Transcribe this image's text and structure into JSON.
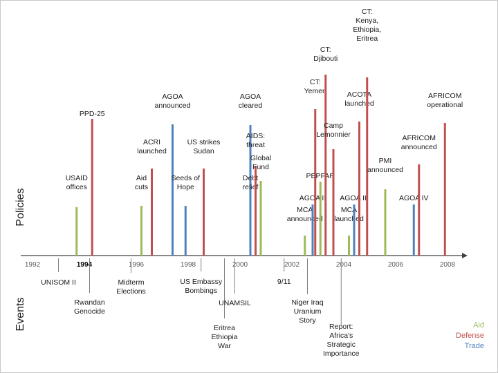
{
  "colors": {
    "aid": "#9bbb59",
    "defense": "#c0504d",
    "trade": "#4f81bd",
    "axis": "#404040",
    "text": "#1a1a1a"
  },
  "axis_labels": {
    "top": "Policies",
    "bottom": "Events"
  },
  "years": [
    "1992",
    "1994",
    "1996",
    "1998",
    "2000",
    "2002",
    "2004",
    "2006",
    "2008"
  ],
  "legend": [
    {
      "label": "Aid",
      "category": "aid"
    },
    {
      "label": "Defense",
      "category": "defense"
    },
    {
      "label": "Trade",
      "category": "trade"
    }
  ],
  "policies": [
    {
      "label": [
        "USAID",
        "offices"
      ],
      "year": 1993.7,
      "category": "aid"
    },
    {
      "label": [
        "PPD-25"
      ],
      "year": 1994.3,
      "category": "defense"
    },
    {
      "label": [
        "Aid",
        "cuts"
      ],
      "year": 1996.2,
      "category": "aid"
    },
    {
      "label": [
        "ACRI",
        "launched"
      ],
      "year": 1996.6,
      "category": "defense"
    },
    {
      "label": [
        "AGOA",
        "announced"
      ],
      "year": 1997.4,
      "category": "trade"
    },
    {
      "label": [
        "Seeds of",
        "Hope"
      ],
      "year": 1997.9,
      "category": "trade"
    },
    {
      "label": [
        "US strikes",
        "Sudan"
      ],
      "year": 1998.6,
      "category": "defense"
    },
    {
      "label": [
        "AGOA",
        "cleared"
      ],
      "year": 2000.4,
      "category": "trade"
    },
    {
      "label": [
        "Debt",
        "relief"
      ],
      "year": 2000.4,
      "category": "trade"
    },
    {
      "label": [
        "AIDS:",
        "threat"
      ],
      "year": 2000.6,
      "category": "defense"
    },
    {
      "label": [
        "Global",
        "Fund"
      ],
      "year": 2000.8,
      "category": "aid"
    },
    {
      "label": [
        "MCA",
        "announced"
      ],
      "year": 2002.5,
      "category": "aid"
    },
    {
      "label": [
        "AGOA II"
      ],
      "year": 2002.8,
      "category": "trade"
    },
    {
      "label": [
        "CT:",
        "Yemen"
      ],
      "year": 2002.9,
      "category": "defense"
    },
    {
      "label": [
        "PEPFAR"
      ],
      "year": 2003.1,
      "category": "aid"
    },
    {
      "label": [
        "CT:",
        "Djibouti"
      ],
      "year": 2003.3,
      "category": "defense"
    },
    {
      "label": [
        "Camp",
        "Lemonnier"
      ],
      "year": 2003.6,
      "category": "defense"
    },
    {
      "label": [
        "MCA",
        "launched"
      ],
      "year": 2004.2,
      "category": "aid"
    },
    {
      "label": [
        "AGOA III"
      ],
      "year": 2004.4,
      "category": "trade"
    },
    {
      "label": [
        "ACOTA",
        "launched"
      ],
      "year": 2004.6,
      "category": "defense"
    },
    {
      "label": [
        "CT:",
        "Kenya,",
        "Ethiopia,",
        "Eritrea"
      ],
      "year": 2004.9,
      "category": "defense"
    },
    {
      "label": [
        "PMI",
        "announced"
      ],
      "year": 2005.6,
      "category": "aid"
    },
    {
      "label": [
        "AGOA IV"
      ],
      "year": 2006.7,
      "category": "trade"
    },
    {
      "label": [
        "AFRICOM",
        "announced"
      ],
      "year": 2006.9,
      "category": "defense"
    },
    {
      "label": [
        "AFRICOM",
        "operational"
      ],
      "year": 2007.9,
      "category": "defense"
    }
  ],
  "events": [
    {
      "label": [
        "UNISOM II"
      ],
      "year": 1993.0
    },
    {
      "label": [
        "Rwandan",
        "Genocide"
      ],
      "year": 1994.2
    },
    {
      "label": [
        "Midterm",
        "Elections"
      ],
      "year": 1995.8
    },
    {
      "label": [
        "US Embassy",
        "Bombings"
      ],
      "year": 1998.5
    },
    {
      "label": [
        "Eritrea",
        "Ethiopia",
        "War"
      ],
      "year": 1999.4
    },
    {
      "label": [
        "UNAMSIL"
      ],
      "year": 1999.8
    },
    {
      "label": [
        "9/11"
      ],
      "year": 2001.7
    },
    {
      "label": [
        "Niger Iraq",
        "Uranium",
        "Story"
      ],
      "year": 2002.6
    },
    {
      "label": [
        "Report:",
        "Africa's",
        "Strategic",
        "Importance"
      ],
      "year": 2003.9
    }
  ]
}
